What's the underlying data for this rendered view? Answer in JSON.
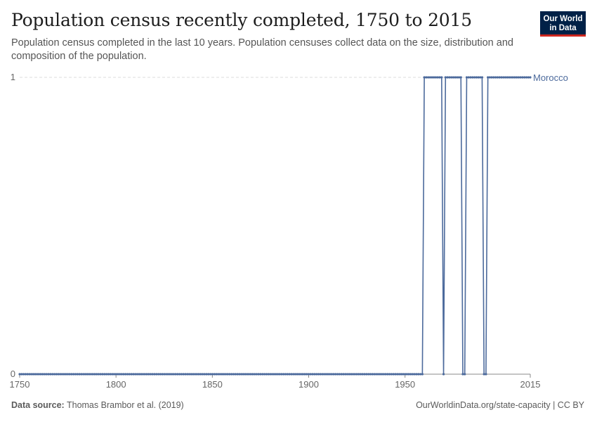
{
  "header": {
    "title": "Population census recently completed, 1750 to 2015",
    "subtitle": "Population census completed in the last 10 years. Population censuses collect data on the size, distribution and composition of the population."
  },
  "logo": {
    "line1": "Our World",
    "line2": "in Data"
  },
  "footer": {
    "source_label": "Data source:",
    "source_text": "Thomas Brambor et al. (2019)",
    "url_license": "OurWorldinData.org/state-capacity | CC BY"
  },
  "colors": {
    "series": "#4c6a9c",
    "grid": "#dddddd",
    "axis": "#888888"
  },
  "chart_data": {
    "type": "line",
    "title": "Population census recently completed, 1750 to 2015",
    "xlim": [
      1750,
      2015
    ],
    "ylim": [
      0,
      1
    ],
    "x_ticks": [
      1750,
      1800,
      1850,
      1900,
      1950,
      2015
    ],
    "y_ticks": [
      0,
      1
    ],
    "series": [
      {
        "name": "Morocco",
        "x_start": 1750,
        "x_end": 2015,
        "value_one_years": [
          [
            1960,
            1969
          ],
          [
            1971,
            1979
          ],
          [
            1982,
            1990
          ],
          [
            1993,
            2015
          ]
        ]
      }
    ]
  }
}
